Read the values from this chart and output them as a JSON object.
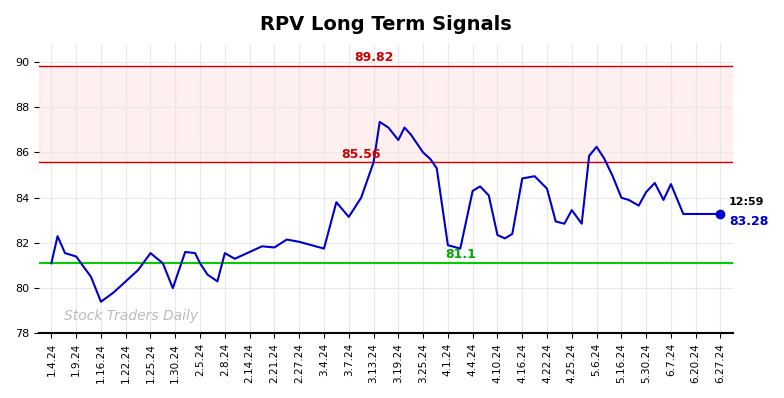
{
  "title": "RPV Long Term Signals",
  "watermark": "Stock Traders Daily",
  "x_labels": [
    "1.4.24",
    "1.9.24",
    "1.16.24",
    "1.22.24",
    "1.25.24",
    "1.30.24",
    "2.5.24",
    "2.8.24",
    "2.14.24",
    "2.21.24",
    "2.27.24",
    "3.4.24",
    "3.7.24",
    "3.13.24",
    "3.19.24",
    "3.25.24",
    "4.1.24",
    "4.4.24",
    "4.10.24",
    "4.16.24",
    "4.22.24",
    "4.25.24",
    "5.6.24",
    "5.16.24",
    "5.30.24",
    "6.7.24",
    "6.20.24",
    "6.27.24"
  ],
  "line_color": "#0000cc",
  "hline_green": 81.1,
  "hline_red_upper": 89.82,
  "hline_red_lower": 85.56,
  "green_color": "#00aa00",
  "red_color": "#cc0000",
  "red_band_alpha": 0.15,
  "green_line_color": "#00cc00",
  "ylim": [
    78,
    90.8
  ],
  "yticks": [
    78,
    80,
    82,
    84,
    86,
    88,
    90
  ],
  "annotation_89": "89.82",
  "annotation_85": "85.56",
  "annotation_81": "81.1",
  "background_color": "#ffffff",
  "grid_color": "#e8e8e8",
  "x_data": [
    0.0,
    0.25,
    0.55,
    1.0,
    1.6,
    2.0,
    2.5,
    3.0,
    3.5,
    4.0,
    4.5,
    4.9,
    5.4,
    5.8,
    6.0,
    6.3,
    6.7,
    7.0,
    7.4,
    8.0,
    8.5,
    9.0,
    9.5,
    10.0,
    10.5,
    11.0,
    11.5,
    12.0,
    12.5,
    13.0,
    13.25,
    13.6,
    14.0,
    14.25,
    14.5,
    15.0,
    15.3,
    15.55,
    16.0,
    16.5,
    17.0,
    17.3,
    17.65,
    18.0,
    18.3,
    18.6,
    19.0,
    19.5,
    20.0,
    20.35,
    20.7,
    21.0,
    21.4,
    21.7,
    22.0,
    22.3,
    22.65,
    23.0,
    23.3,
    23.7,
    24.0,
    24.35,
    24.7,
    25.0,
    25.5,
    27.0
  ],
  "y_data": [
    81.1,
    82.3,
    81.55,
    81.4,
    80.5,
    79.4,
    79.8,
    80.3,
    80.8,
    81.55,
    81.1,
    80.0,
    81.6,
    81.55,
    81.1,
    80.6,
    80.3,
    81.55,
    81.3,
    81.6,
    81.85,
    81.8,
    82.15,
    82.05,
    81.9,
    81.75,
    83.8,
    83.15,
    84.0,
    85.56,
    87.35,
    87.1,
    86.55,
    87.1,
    86.8,
    86.0,
    85.7,
    85.3,
    81.9,
    81.75,
    84.3,
    84.5,
    84.1,
    82.35,
    82.2,
    82.4,
    84.85,
    84.95,
    84.4,
    82.95,
    82.85,
    83.45,
    82.85,
    85.85,
    86.25,
    85.75,
    84.95,
    84.0,
    83.9,
    83.65,
    84.25,
    84.65,
    83.9,
    84.6,
    83.28,
    83.28
  ]
}
